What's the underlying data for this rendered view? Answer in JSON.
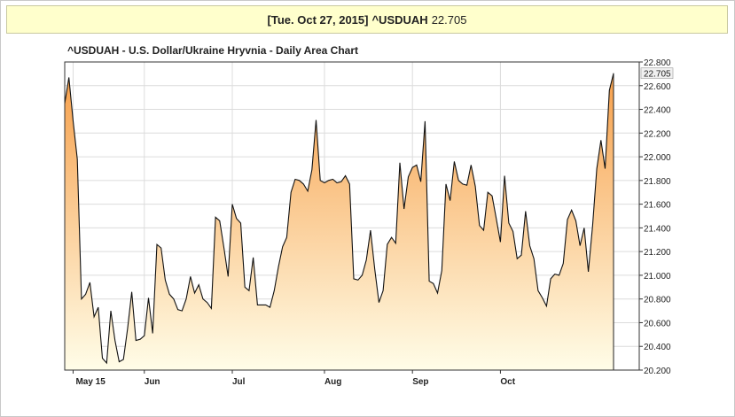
{
  "header": {
    "date_label": "[Tue. Oct 27, 2015]",
    "symbol": "^USDUAH",
    "price": "22.705"
  },
  "colors": {
    "header_bg": "#ffffcc",
    "area_top": "#f7a04b",
    "area_bottom": "#fffde8",
    "line": "#111111",
    "grid": "#dcdcdc",
    "last_price_bg": "#f0f0f0"
  },
  "chart_data": {
    "type": "area",
    "title": "^USDUAH - U.S. Dollar/Ukraine Hryvnia - Daily Area Chart",
    "xlabel": "",
    "ylabel": "",
    "ylim": [
      20.2,
      22.8
    ],
    "y_ticks": [
      "22.800",
      "22.600",
      "22.400",
      "22.200",
      "22.000",
      "21.800",
      "21.600",
      "21.400",
      "21.200",
      "21.000",
      "20.800",
      "20.600",
      "20.400",
      "20.200"
    ],
    "x_ticks": [
      "May 15",
      "Jun",
      "Jul",
      "Aug",
      "Sep",
      "Oct"
    ],
    "grid": true,
    "last_value_label": "22.705",
    "values": [
      22.45,
      22.67,
      22.3,
      21.98,
      20.8,
      20.84,
      20.94,
      20.65,
      20.73,
      20.3,
      20.26,
      20.7,
      20.45,
      20.27,
      20.29,
      20.55,
      20.86,
      20.45,
      20.46,
      20.49,
      20.81,
      20.51,
      21.26,
      21.23,
      20.96,
      20.84,
      20.8,
      20.71,
      20.7,
      20.8,
      20.99,
      20.85,
      20.92,
      20.8,
      20.77,
      20.72,
      21.49,
      21.46,
      21.23,
      20.99,
      21.6,
      21.48,
      21.44,
      20.9,
      20.87,
      21.15,
      20.75,
      20.75,
      20.75,
      20.73,
      20.87,
      21.07,
      21.24,
      21.32,
      21.7,
      21.81,
      21.8,
      21.77,
      21.71,
      21.89,
      22.31,
      21.8,
      21.78,
      21.8,
      21.81,
      21.78,
      21.79,
      21.84,
      21.77,
      20.97,
      20.96,
      21.0,
      21.13,
      21.38,
      21.05,
      20.77,
      20.87,
      21.26,
      21.32,
      21.27,
      21.95,
      21.56,
      21.83,
      21.91,
      21.93,
      21.79,
      22.3,
      20.95,
      20.93,
      20.85,
      21.04,
      21.77,
      21.63,
      21.96,
      21.8,
      21.77,
      21.76,
      21.93,
      21.75,
      21.42,
      21.38,
      21.7,
      21.67,
      21.48,
      21.28,
      21.84,
      21.44,
      21.37,
      21.14,
      21.17,
      21.54,
      21.25,
      21.14,
      20.87,
      20.81,
      20.74,
      20.97,
      21.01,
      21.0,
      21.1,
      21.47,
      21.55,
      21.46,
      21.25,
      21.4,
      21.03,
      21.42,
      21.9,
      22.14,
      21.9,
      22.56,
      22.705
    ]
  }
}
